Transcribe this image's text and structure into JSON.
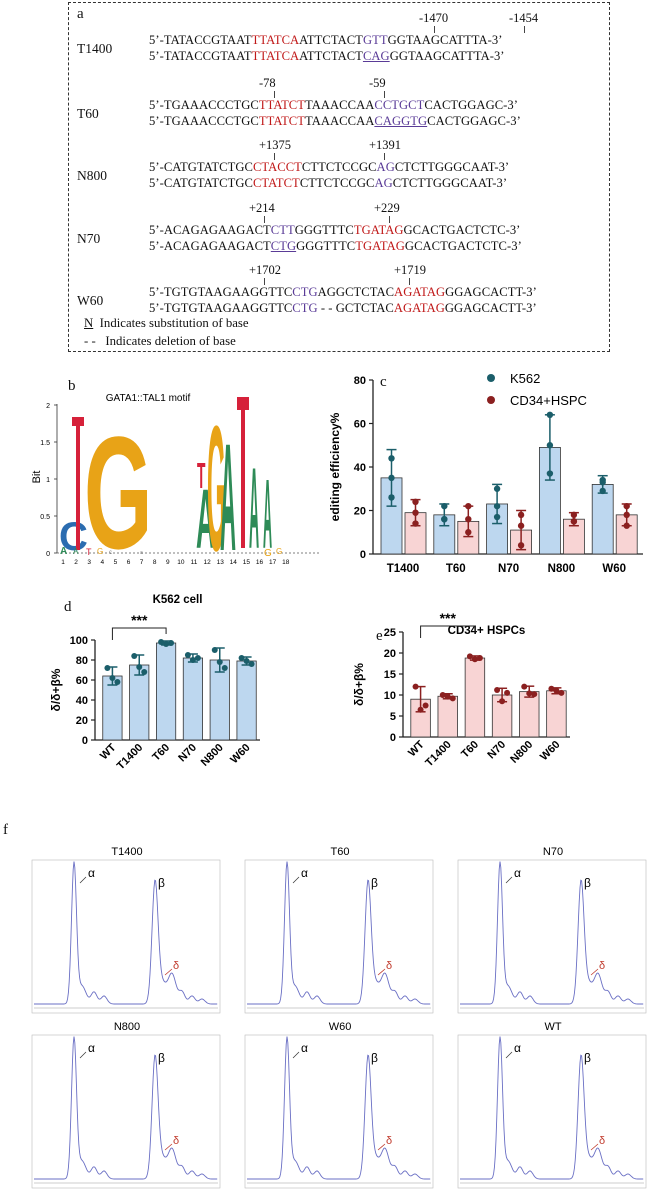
{
  "panel_a": {
    "label": "a",
    "rows": [
      {
        "name": "T1400",
        "positions": [
          "-1470",
          "-1454"
        ],
        "line1": [
          {
            "t": "5’-TATACCGTAAT",
            "c": ""
          },
          {
            "t": "TTATCA",
            "c": "red"
          },
          {
            "t": "ATTCTACT",
            "c": ""
          },
          {
            "t": "GTT",
            "c": "pur"
          },
          {
            "t": "GGTAAGCATTTA-3’",
            "c": ""
          }
        ],
        "line2": [
          {
            "t": "5’-TATACCGTAAT",
            "c": ""
          },
          {
            "t": "TTATCA",
            "c": "red"
          },
          {
            "t": "ATTCTACT",
            "c": ""
          },
          {
            "t": "CAG",
            "c": "pur u"
          },
          {
            "t": "GGTAAGCATTTA-3’",
            "c": ""
          }
        ]
      },
      {
        "name": "T60",
        "positions": [
          "-78",
          "-59"
        ],
        "line1": [
          {
            "t": "5’-TGAAACCCTGC",
            "c": ""
          },
          {
            "t": "TTATCT",
            "c": "red"
          },
          {
            "t": "TAAACCAA",
            "c": ""
          },
          {
            "t": "CCTGCT",
            "c": "pur"
          },
          {
            "t": "CACTGGAGC-3’",
            "c": ""
          }
        ],
        "line2": [
          {
            "t": "5’-TGAAACCCTGC",
            "c": ""
          },
          {
            "t": "TTATCT",
            "c": "red"
          },
          {
            "t": "TAAACCAA",
            "c": ""
          },
          {
            "t": "CAGGTG",
            "c": "pur u"
          },
          {
            "t": "CACTGGAGC-3’",
            "c": ""
          }
        ]
      },
      {
        "name": "N800",
        "positions": [
          "+1375",
          "+1391"
        ],
        "line1": [
          {
            "t": "5’-CATGTATCTGC",
            "c": ""
          },
          {
            "t": "CTACCT",
            "c": "red"
          },
          {
            "t": "CTTCTCCGC",
            "c": ""
          },
          {
            "t": "AG",
            "c": "pur"
          },
          {
            "t": "CTCTTGGGCAAT-3’",
            "c": ""
          }
        ],
        "line2": [
          {
            "t": "5’-CATGTATCTGC",
            "c": ""
          },
          {
            "t": "CTATCT",
            "c": "red"
          },
          {
            "t": "CTTCTCCGC",
            "c": ""
          },
          {
            "t": "AG",
            "c": "pur"
          },
          {
            "t": "CTCTTGGGCAAT-3’",
            "c": ""
          }
        ]
      },
      {
        "name": "N70",
        "positions": [
          "+214",
          "+229"
        ],
        "line1": [
          {
            "t": "5’-ACAGAGAAGACT",
            "c": ""
          },
          {
            "t": "CTT",
            "c": "pur"
          },
          {
            "t": "GGGTTTC",
            "c": ""
          },
          {
            "t": "TGATAG",
            "c": "red"
          },
          {
            "t": "GCACTGACTCTC-3’",
            "c": ""
          }
        ],
        "line2": [
          {
            "t": "5’-ACAGAGAAGACT",
            "c": ""
          },
          {
            "t": "CTG",
            "c": "pur u"
          },
          {
            "t": "GGGTTTC",
            "c": ""
          },
          {
            "t": "TGATAG",
            "c": "red"
          },
          {
            "t": "GCACTGACTCTC-3’",
            "c": ""
          }
        ]
      },
      {
        "name": "W60",
        "positions": [
          "+1702",
          "+1719"
        ],
        "line1": [
          {
            "t": "5’-TGTGTAAGAAGGTTC",
            "c": ""
          },
          {
            "t": "CTG",
            "c": "pur"
          },
          {
            "t": "AGGCTCTAC",
            "c": ""
          },
          {
            "t": "AGATAG",
            "c": "red"
          },
          {
            "t": "GGAGCACTT-3’",
            "c": ""
          }
        ],
        "line2": [
          {
            "t": "5’-TGTGTAAGAAGGTTC",
            "c": ""
          },
          {
            "t": "CTG",
            "c": "pur"
          },
          {
            "t": " - - GCTCTAC",
            "c": ""
          },
          {
            "t": "AGATAG",
            "c": "red"
          },
          {
            "t": "GGAGCACTT-3’",
            "c": ""
          }
        ]
      }
    ],
    "legend_sub_symbol": "N",
    "legend_sub_text": "Indicates substitution of base",
    "legend_del_symbol": "- -",
    "legend_del_text": "Indicates deletion of base"
  },
  "panel_b": {
    "label": "b",
    "title": "GATA1::TAL1 motif",
    "ylabel": "Bit",
    "yticks": [
      "0",
      "0.5",
      "1",
      "1.5",
      "2"
    ],
    "xticks": [
      "1",
      "2",
      "3",
      "4",
      "5",
      "6",
      "7",
      "8",
      "9",
      "10",
      "11",
      "12",
      "13",
      "14",
      "15",
      "16",
      "17",
      "18"
    ]
  },
  "panel_f": {
    "label": "f",
    "spectra": [
      {
        "title": "T1400",
        "alpha": "α",
        "beta": "β",
        "delta": "δ"
      },
      {
        "title": "T60",
        "alpha": "α",
        "beta": "β",
        "delta": "δ"
      },
      {
        "title": "N70",
        "alpha": "α",
        "beta": "β",
        "delta": "δ"
      },
      {
        "title": "N800",
        "alpha": "α",
        "beta": "β",
        "delta": "δ"
      },
      {
        "title": "W60",
        "alpha": "α",
        "beta": "β",
        "delta": "δ"
      },
      {
        "title": "WT",
        "alpha": "α",
        "beta": "β",
        "delta": "δ"
      }
    ]
  },
  "chart_data": [
    {
      "id": "c",
      "label": "c",
      "type": "bar",
      "ylabel": "editing efficiency%",
      "ylim": [
        0,
        80
      ],
      "yticks": [
        0,
        20,
        40,
        60,
        80
      ],
      "categories": [
        "T1400",
        "T60",
        "N70",
        "N800",
        "W60"
      ],
      "series": [
        {
          "name": "K562",
          "color": "#1b5e6a",
          "fill": "#bdd7ef",
          "values": [
            35,
            18,
            23,
            49,
            32
          ],
          "errors": [
            13,
            5,
            9,
            15,
            4
          ],
          "points": [
            [
              44,
              35,
              26
            ],
            [
              22,
              16,
              16
            ],
            [
              30,
              22,
              17
            ],
            [
              64,
              50,
              37
            ],
            [
              34,
              33,
              29
            ]
          ]
        },
        {
          "name": "CD34+HSPC",
          "color": "#8b2020",
          "fill": "#f8d4d4",
          "values": [
            19,
            15,
            11,
            16,
            18
          ],
          "errors": [
            6,
            7,
            9,
            3,
            5
          ],
          "points": [
            [
              24,
              19,
              14
            ],
            [
              22,
              16,
              10
            ],
            [
              18,
              13,
              4
            ],
            [
              18,
              15,
              15
            ],
            [
              22,
              18,
              13
            ]
          ]
        }
      ]
    },
    {
      "id": "d",
      "label": "d",
      "type": "bar",
      "title": "K562 cell",
      "ylabel": "δ/δ+β%",
      "ylim": [
        0,
        100
      ],
      "yticks": [
        0,
        20,
        40,
        60,
        80,
        100
      ],
      "categories": [
        "WT",
        "T1400",
        "T60",
        "N70",
        "N800",
        "W60"
      ],
      "color": "#1b5e6a",
      "fill": "#bdd7ef",
      "values": [
        64,
        75,
        97,
        82,
        80,
        79
      ],
      "errors": [
        9,
        10,
        2,
        4,
        12,
        4
      ],
      "points": [
        [
          72,
          62,
          58
        ],
        [
          84,
          73,
          68
        ],
        [
          98,
          96,
          97
        ],
        [
          85,
          80,
          82
        ],
        [
          90,
          78,
          72
        ],
        [
          82,
          79,
          76
        ]
      ],
      "significance": {
        "from": "WT",
        "to": "T60",
        "label": "***"
      }
    },
    {
      "id": "e",
      "label": "e",
      "type": "bar",
      "title": "CD34+ HSPCs",
      "ylabel": "δ/δ+β%",
      "ylim": [
        0,
        25
      ],
      "yticks": [
        0,
        5,
        10,
        15,
        20,
        25
      ],
      "categories": [
        "WT",
        "T1400",
        "T60",
        "N70",
        "N800",
        "W60"
      ],
      "color": "#8b2020",
      "fill": "#f8d4d4",
      "values": [
        9,
        9.7,
        18.8,
        10,
        10.8,
        11
      ],
      "errors": [
        3,
        0.6,
        0.5,
        1.6,
        1.3,
        0.7
      ],
      "points": [
        [
          12,
          6.5,
          7.5
        ],
        [
          10,
          9.6,
          9.2
        ],
        [
          19.2,
          18.5,
          18.8
        ],
        [
          11.2,
          8.5,
          10.5
        ],
        [
          12,
          10.4,
          10.2
        ],
        [
          11.5,
          11,
          10.5
        ]
      ],
      "significance": {
        "from": "WT",
        "to": "T60",
        "label": "***"
      }
    }
  ]
}
